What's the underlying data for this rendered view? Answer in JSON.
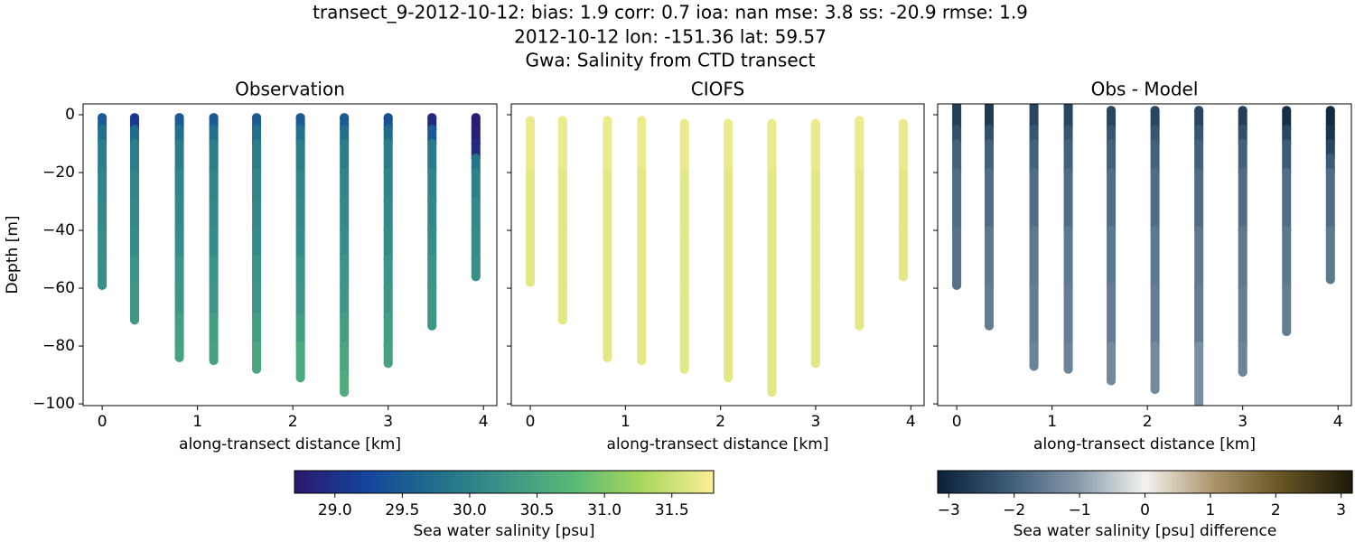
{
  "suptitle": [
    "transect_9-2012-10-12: bias: 1.9  corr: 0.7  ioa: nan  mse: 3.8  ss: -20.9  rmse: 1.9",
    "2012-10-12 lon: -151.36 lat: 59.57",
    "Gwa: Salinity from CTD transect"
  ],
  "chart_data": [
    {
      "type": "scatter",
      "title": "Observation",
      "xlabel": "along-transect distance [km]",
      "ylabel": "Depth [m]",
      "xlim": [
        -0.2,
        4.14
      ],
      "xticks": [
        0,
        1,
        2,
        3,
        4
      ],
      "ylim": [
        -100.6,
        3.75
      ],
      "yticks": [
        {
          "value": 0,
          "label": "0"
        },
        {
          "value": -20,
          "label": "−20"
        },
        {
          "value": -40,
          "label": "−40"
        },
        {
          "value": -60,
          "label": "−60"
        },
        {
          "value": -80,
          "label": "−80"
        },
        {
          "value": -100,
          "label": "−100"
        }
      ],
      "x": [
        0,
        0.34,
        0.81,
        1.17,
        1.62,
        2.08,
        2.54,
        3.0,
        3.46,
        3.92
      ],
      "clim": [
        28.7,
        31.81
      ],
      "colormap": [
        "#2a186c",
        "#14439c",
        "#206e8b",
        "#3c9387",
        "#5ab978",
        "#aad85c",
        "#fdef9a"
      ],
      "colorbar": {
        "label": "Sea water salinity [psu]",
        "ticks": [
          {
            "value": 29,
            "label": "29.0"
          },
          29.5,
          {
            "value": 30,
            "label": "30.0"
          },
          30.5,
          {
            "value": 31,
            "label": "31.0"
          },
          31.5
        ]
      },
      "profiles": [
        {
          "depth": [
            -1,
            -5,
            -10,
            -20,
            -30,
            -40,
            -50,
            -59
          ],
          "values": [
            28.8,
            29.5,
            29.75,
            29.95,
            30.05,
            30.1,
            30.15,
            30.2
          ]
        },
        {
          "depth": [
            -1,
            -5,
            -10,
            -20,
            -30,
            -40,
            -50,
            -60,
            -71
          ],
          "values": [
            28.7,
            29.1,
            29.7,
            29.95,
            30.05,
            30.1,
            30.15,
            30.25,
            30.3
          ]
        },
        {
          "depth": [
            -1,
            -5,
            -10,
            -20,
            -30,
            -40,
            -50,
            -60,
            -70,
            -80,
            -84
          ],
          "values": [
            28.9,
            29.5,
            29.75,
            29.95,
            30.05,
            30.1,
            30.15,
            30.25,
            30.3,
            30.4,
            30.45
          ]
        },
        {
          "depth": [
            -1,
            -5,
            -10,
            -20,
            -30,
            -40,
            -50,
            -60,
            -70,
            -80,
            -85
          ],
          "values": [
            28.9,
            29.5,
            29.75,
            29.95,
            30.05,
            30.1,
            30.15,
            30.25,
            30.3,
            30.4,
            30.45
          ]
        },
        {
          "depth": [
            -1,
            -5,
            -10,
            -20,
            -30,
            -40,
            -50,
            -60,
            -70,
            -80,
            -88
          ],
          "values": [
            28.8,
            29.5,
            29.75,
            29.95,
            30.05,
            30.1,
            30.15,
            30.25,
            30.3,
            30.4,
            30.5
          ]
        },
        {
          "depth": [
            -1,
            -5,
            -10,
            -20,
            -30,
            -40,
            -50,
            -60,
            -70,
            -80,
            -91
          ],
          "values": [
            28.8,
            29.5,
            29.75,
            29.95,
            30.05,
            30.1,
            30.15,
            30.25,
            30.3,
            30.4,
            30.55
          ]
        },
        {
          "depth": [
            -1,
            -5,
            -10,
            -20,
            -30,
            -40,
            -50,
            -60,
            -70,
            -80,
            -90,
            -96
          ],
          "values": [
            28.8,
            29.5,
            29.75,
            29.95,
            30.05,
            30.1,
            30.15,
            30.25,
            30.3,
            30.4,
            30.5,
            30.6
          ]
        },
        {
          "depth": [
            -1,
            -5,
            -10,
            -20,
            -30,
            -40,
            -50,
            -60,
            -70,
            -80,
            -86
          ],
          "values": [
            28.8,
            29.4,
            29.7,
            29.95,
            30.05,
            30.1,
            30.15,
            30.25,
            30.3,
            30.4,
            30.45
          ]
        },
        {
          "depth": [
            -1,
            -5,
            -10,
            -20,
            -30,
            -40,
            -50,
            -60,
            -70,
            -73
          ],
          "values": [
            28.7,
            28.9,
            29.5,
            29.9,
            30.05,
            30.1,
            30.15,
            30.25,
            30.3,
            30.3
          ]
        },
        {
          "depth": [
            -1,
            -5,
            -10,
            -15,
            -20,
            -30,
            -40,
            -50,
            -56
          ],
          "values": [
            28.7,
            28.75,
            28.8,
            28.9,
            29.8,
            30.0,
            30.1,
            30.15,
            30.2
          ]
        }
      ]
    },
    {
      "type": "scatter",
      "title": "CIOFS",
      "xlabel": "along-transect distance [km]",
      "xlim": [
        -0.2,
        4.14
      ],
      "xticks": [
        0,
        1,
        2,
        3,
        4
      ],
      "ylim": [
        -100.6,
        3.75
      ],
      "yticks": [
        0,
        -20,
        -40,
        -60,
        -80,
        -100
      ],
      "x": [
        0,
        0.34,
        0.81,
        1.17,
        1.62,
        2.08,
        2.54,
        3.0,
        3.46,
        3.92
      ],
      "clim": [
        28.7,
        31.81
      ],
      "colormap": [
        "#2a186c",
        "#14439c",
        "#206e8b",
        "#3c9387",
        "#5ab978",
        "#aad85c",
        "#fdef9a"
      ],
      "profiles": [
        {
          "depth": [
            -2,
            -20,
            -40,
            -58
          ],
          "values": [
            31.7,
            31.7,
            31.65,
            31.65
          ]
        },
        {
          "depth": [
            -2,
            -20,
            -40,
            -60,
            -71
          ],
          "values": [
            31.7,
            31.7,
            31.65,
            31.65,
            31.65
          ]
        },
        {
          "depth": [
            -2,
            -20,
            -40,
            -60,
            -84
          ],
          "values": [
            31.7,
            31.7,
            31.65,
            31.65,
            31.65
          ]
        },
        {
          "depth": [
            -2,
            -20,
            -40,
            -60,
            -85
          ],
          "values": [
            31.7,
            31.7,
            31.65,
            31.65,
            31.65
          ]
        },
        {
          "depth": [
            -3,
            -20,
            -40,
            -60,
            -88
          ],
          "values": [
            31.7,
            31.7,
            31.65,
            31.65,
            31.65
          ]
        },
        {
          "depth": [
            -3,
            -20,
            -40,
            -60,
            -91
          ],
          "values": [
            31.7,
            31.7,
            31.65,
            31.65,
            31.65
          ]
        },
        {
          "depth": [
            -3,
            -20,
            -40,
            -60,
            -96
          ],
          "values": [
            31.7,
            31.7,
            31.65,
            31.65,
            31.65
          ]
        },
        {
          "depth": [
            -3,
            -20,
            -40,
            -60,
            -86
          ],
          "values": [
            31.7,
            31.7,
            31.65,
            31.65,
            31.65
          ]
        },
        {
          "depth": [
            -2,
            -20,
            -40,
            -60,
            -73
          ],
          "values": [
            31.7,
            31.7,
            31.65,
            31.65,
            31.65
          ]
        },
        {
          "depth": [
            -3,
            -20,
            -40,
            -56
          ],
          "values": [
            31.7,
            31.7,
            31.65,
            31.65
          ]
        }
      ]
    },
    {
      "type": "scatter",
      "title": "Obs - Model",
      "xlabel": "along-transect distance [km]",
      "xlim": [
        -0.2,
        4.14
      ],
      "xticks": [
        0,
        1,
        2,
        3,
        4
      ],
      "ylim": [
        -100.6,
        3.75
      ],
      "yticks": [
        0,
        -20,
        -40,
        -60,
        -80,
        -100
      ],
      "x": [
        0,
        0.34,
        0.81,
        1.17,
        1.62,
        2.08,
        2.54,
        3.0,
        3.46,
        3.92
      ],
      "clim": [
        -3.17,
        3.17
      ],
      "colormap": [
        "#0a2138",
        "#3b5a76",
        "#8497a8",
        "#f3f2ef",
        "#ab946a",
        "#655322",
        "#1c1a0a"
      ],
      "colorbar": {
        "label": "Sea water salinity [psu] difference",
        "ticks": [
          {
            "value": -3,
            "label": "−3"
          },
          {
            "value": -2,
            "label": "−2"
          },
          {
            "value": -1,
            "label": "−1"
          },
          0,
          1,
          2,
          3
        ]
      },
      "profiles": [
        {
          "depth": [
            3,
            -5,
            -10,
            -20,
            -40,
            -59
          ],
          "values": [
            -3.0,
            -2.6,
            -2.3,
            -2.0,
            -1.8,
            -1.7
          ]
        },
        {
          "depth": [
            3,
            -5,
            -10,
            -20,
            -40,
            -60,
            -73
          ],
          "values": [
            -3.1,
            -2.7,
            -2.3,
            -2.0,
            -1.8,
            -1.6,
            -1.5
          ]
        },
        {
          "depth": [
            3,
            -5,
            -10,
            -20,
            -40,
            -60,
            -80,
            -87
          ],
          "values": [
            -2.9,
            -2.5,
            -2.2,
            -2.0,
            -1.8,
            -1.6,
            -1.5,
            -1.4
          ]
        },
        {
          "depth": [
            3,
            -5,
            -10,
            -20,
            -40,
            -60,
            -80,
            -88
          ],
          "values": [
            -2.9,
            -2.5,
            -2.2,
            -2.0,
            -1.8,
            -1.6,
            -1.5,
            -1.4
          ]
        },
        {
          "depth": [
            1.5,
            -5,
            -10,
            -20,
            -40,
            -60,
            -80,
            -92
          ],
          "values": [
            -3.0,
            -2.5,
            -2.2,
            -2.0,
            -1.8,
            -1.6,
            -1.5,
            -1.3
          ]
        },
        {
          "depth": [
            1.5,
            -5,
            -10,
            -20,
            -40,
            -60,
            -80,
            -95
          ],
          "values": [
            -3.0,
            -2.5,
            -2.2,
            -2.0,
            -1.8,
            -1.6,
            -1.5,
            -1.3
          ]
        },
        {
          "depth": [
            1.5,
            -5,
            -10,
            -20,
            -40,
            -60,
            -80,
            -101
          ],
          "values": [
            -3.0,
            -2.5,
            -2.2,
            -2.0,
            -1.8,
            -1.6,
            -1.5,
            -1.2
          ]
        },
        {
          "depth": [
            1.5,
            -5,
            -10,
            -20,
            -40,
            -60,
            -80,
            -89
          ],
          "values": [
            -3.1,
            -2.6,
            -2.3,
            -2.0,
            -1.8,
            -1.6,
            -1.5,
            -1.4
          ]
        },
        {
          "depth": [
            1.5,
            -5,
            -10,
            -20,
            -40,
            -60,
            -75
          ],
          "values": [
            -3.1,
            -2.9,
            -2.5,
            -2.1,
            -1.8,
            -1.6,
            -1.5
          ]
        },
        {
          "depth": [
            1.5,
            -5,
            -10,
            -15,
            -20,
            -40,
            -57
          ],
          "values": [
            -3.1,
            -3.0,
            -2.8,
            -2.5,
            -2.1,
            -1.8,
            -1.6
          ]
        }
      ]
    }
  ]
}
